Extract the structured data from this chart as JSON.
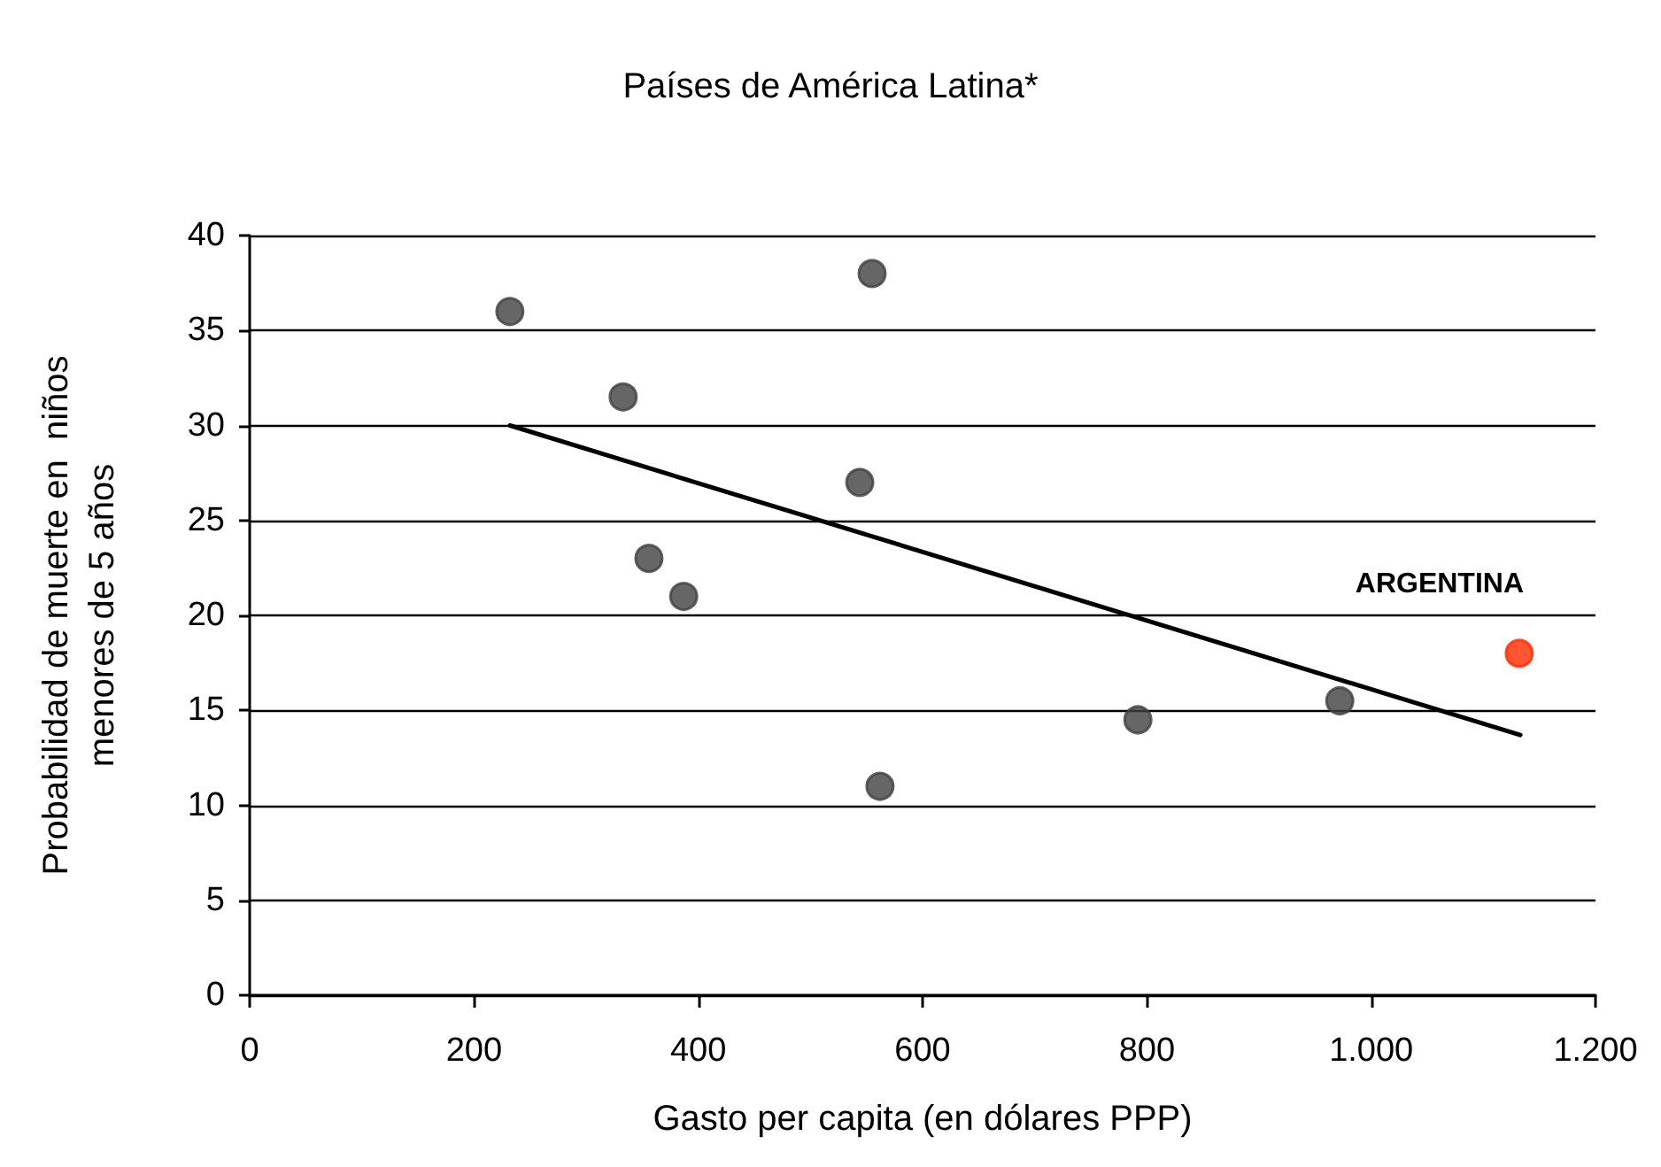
{
  "chart_data": {
    "type": "scatter",
    "title": "Países de América Latina*",
    "xlabel": "Gasto per capita (en dólares PPP)",
    "ylabel": "Probabilidad de muerte en  niños\nmenores de 5 años",
    "series": [
      {
        "color": "#404040",
        "x": [
          232,
          333,
          356,
          387,
          544,
          555,
          562,
          792,
          972
        ],
        "values": [
          36,
          31.5,
          23,
          21,
          27,
          38,
          11,
          14.5,
          15.5
        ]
      },
      {
        "color": "#ff2a00",
        "x": [
          1132
        ],
        "values": [
          18
        ]
      },
      {
        "type": "line",
        "marker": "none",
        "color": "#000000",
        "x": [
          232,
          1133
        ],
        "values": [
          30,
          13.7
        ]
      }
    ],
    "annotations": [
      {
        "text": "ARGENTINA",
        "x": 1132,
        "y": 18
      }
    ],
    "xlim": [
      0,
      1200
    ],
    "xticks": [
      0,
      200,
      400,
      600,
      800,
      {
        "value": 1000,
        "label": "1.000"
      },
      {
        "value": 1200,
        "label": "1.200"
      }
    ],
    "ylim": [
      0,
      40
    ],
    "yticks": [
      0,
      5,
      10,
      15,
      20,
      25,
      30,
      35,
      40
    ],
    "grid": "y",
    "marker": "circle",
    "line_style": "solid"
  }
}
